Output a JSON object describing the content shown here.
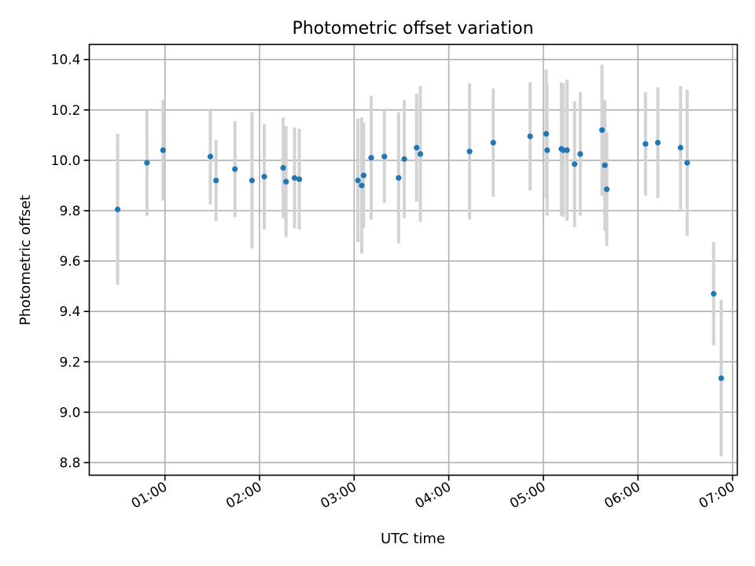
{
  "chart_data": {
    "type": "scatter",
    "title": "Photometric offset variation",
    "xlabel": "UTC time",
    "ylabel": "Photometric offset",
    "xlim": [
      0.2,
      7.05
    ],
    "ylim": [
      8.75,
      10.46
    ],
    "grid": true,
    "x_ticks": [
      {
        "value": 1,
        "label": "01:00"
      },
      {
        "value": 2,
        "label": "02:00"
      },
      {
        "value": 3,
        "label": "03:00"
      },
      {
        "value": 4,
        "label": "04:00"
      },
      {
        "value": 5,
        "label": "05:00"
      },
      {
        "value": 6,
        "label": "06:00"
      },
      {
        "value": 7,
        "label": "07:00"
      }
    ],
    "y_ticks": [
      {
        "value": 8.8,
        "label": "8.8"
      },
      {
        "value": 9.0,
        "label": "9.0"
      },
      {
        "value": 9.2,
        "label": "9.2"
      },
      {
        "value": 9.4,
        "label": "9.4"
      },
      {
        "value": 9.6,
        "label": "9.6"
      },
      {
        "value": 9.8,
        "label": "9.8"
      },
      {
        "value": 10.0,
        "label": "10.0"
      },
      {
        "value": 10.2,
        "label": "10.2"
      },
      {
        "value": 10.4,
        "label": "10.4"
      }
    ],
    "point_color": "#1f77b4",
    "errorbar_color": "#d3d3d3",
    "series": [
      {
        "name": "offset",
        "points": [
          {
            "x": 0.5,
            "y": 9.805,
            "err": 0.3
          },
          {
            "x": 0.81,
            "y": 9.99,
            "err": 0.21
          },
          {
            "x": 0.98,
            "y": 10.04,
            "err": 0.2
          },
          {
            "x": 1.48,
            "y": 10.015,
            "err": 0.19
          },
          {
            "x": 1.54,
            "y": 9.92,
            "err": 0.16
          },
          {
            "x": 1.74,
            "y": 9.965,
            "err": 0.19
          },
          {
            "x": 1.92,
            "y": 9.92,
            "err": 0.27
          },
          {
            "x": 2.05,
            "y": 9.935,
            "err": 0.21
          },
          {
            "x": 2.25,
            "y": 9.97,
            "err": 0.2
          },
          {
            "x": 2.28,
            "y": 9.915,
            "err": 0.22
          },
          {
            "x": 2.37,
            "y": 9.93,
            "err": 0.2
          },
          {
            "x": 2.42,
            "y": 9.925,
            "err": 0.2
          },
          {
            "x": 3.04,
            "y": 9.92,
            "err": 0.245
          },
          {
            "x": 3.08,
            "y": 9.9,
            "err": 0.27
          },
          {
            "x": 3.1,
            "y": 9.94,
            "err": 0.21
          },
          {
            "x": 3.18,
            "y": 10.01,
            "err": 0.245
          },
          {
            "x": 3.32,
            "y": 10.015,
            "err": 0.185
          },
          {
            "x": 3.47,
            "y": 9.93,
            "err": 0.26
          },
          {
            "x": 3.53,
            "y": 10.005,
            "err": 0.235
          },
          {
            "x": 3.66,
            "y": 10.05,
            "err": 0.215
          },
          {
            "x": 3.7,
            "y": 10.025,
            "err": 0.27
          },
          {
            "x": 4.22,
            "y": 10.035,
            "err": 0.27
          },
          {
            "x": 4.47,
            "y": 10.07,
            "err": 0.215
          },
          {
            "x": 4.86,
            "y": 10.095,
            "err": 0.215
          },
          {
            "x": 5.03,
            "y": 10.105,
            "err": 0.255
          },
          {
            "x": 5.04,
            "y": 10.04,
            "err": 0.26
          },
          {
            "x": 5.19,
            "y": 10.045,
            "err": 0.265
          },
          {
            "x": 5.21,
            "y": 10.04,
            "err": 0.265
          },
          {
            "x": 5.25,
            "y": 10.04,
            "err": 0.28
          },
          {
            "x": 5.33,
            "y": 9.985,
            "err": 0.25
          },
          {
            "x": 5.39,
            "y": 10.025,
            "err": 0.245
          },
          {
            "x": 5.62,
            "y": 10.12,
            "err": 0.26
          },
          {
            "x": 5.65,
            "y": 9.98,
            "err": 0.26
          },
          {
            "x": 5.67,
            "y": 9.885,
            "err": 0.225
          },
          {
            "x": 6.08,
            "y": 10.065,
            "err": 0.205
          },
          {
            "x": 6.21,
            "y": 10.07,
            "err": 0.22
          },
          {
            "x": 6.45,
            "y": 10.05,
            "err": 0.245
          },
          {
            "x": 6.52,
            "y": 9.99,
            "err": 0.29
          },
          {
            "x": 6.8,
            "y": 9.47,
            "err": 0.205
          },
          {
            "x": 6.88,
            "y": 9.135,
            "err": 0.31
          }
        ]
      }
    ]
  }
}
